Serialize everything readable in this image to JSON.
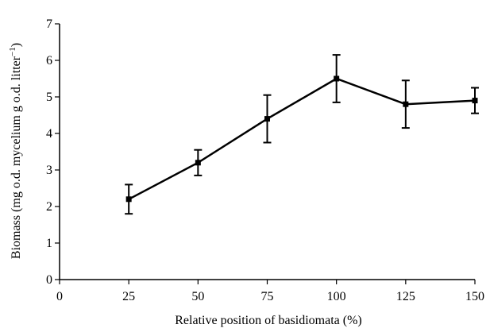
{
  "chart_data": {
    "type": "line",
    "xlabel": "Relative position of basidiomata (%)",
    "ylabel": "Biomass (mg o.d. mycelium g o.d. litter",
    "ylabel_superscript": "−1",
    "ylabel_close": ")",
    "xlim": [
      0,
      150
    ],
    "ylim": [
      0,
      7
    ],
    "xticks": [
      0,
      25,
      50,
      75,
      100,
      125,
      150
    ],
    "yticks": [
      0,
      1,
      2,
      3,
      4,
      5,
      6,
      7
    ],
    "grid": false,
    "legend": "none",
    "series": [
      {
        "x": [
          25,
          50,
          75,
          100,
          125,
          150
        ],
        "y": [
          2.2,
          3.2,
          4.4,
          5.5,
          4.8,
          4.9
        ],
        "error": [
          0.4,
          0.35,
          0.65,
          0.65,
          0.65,
          0.35
        ],
        "marker": "square",
        "color": "#000000"
      }
    ]
  }
}
